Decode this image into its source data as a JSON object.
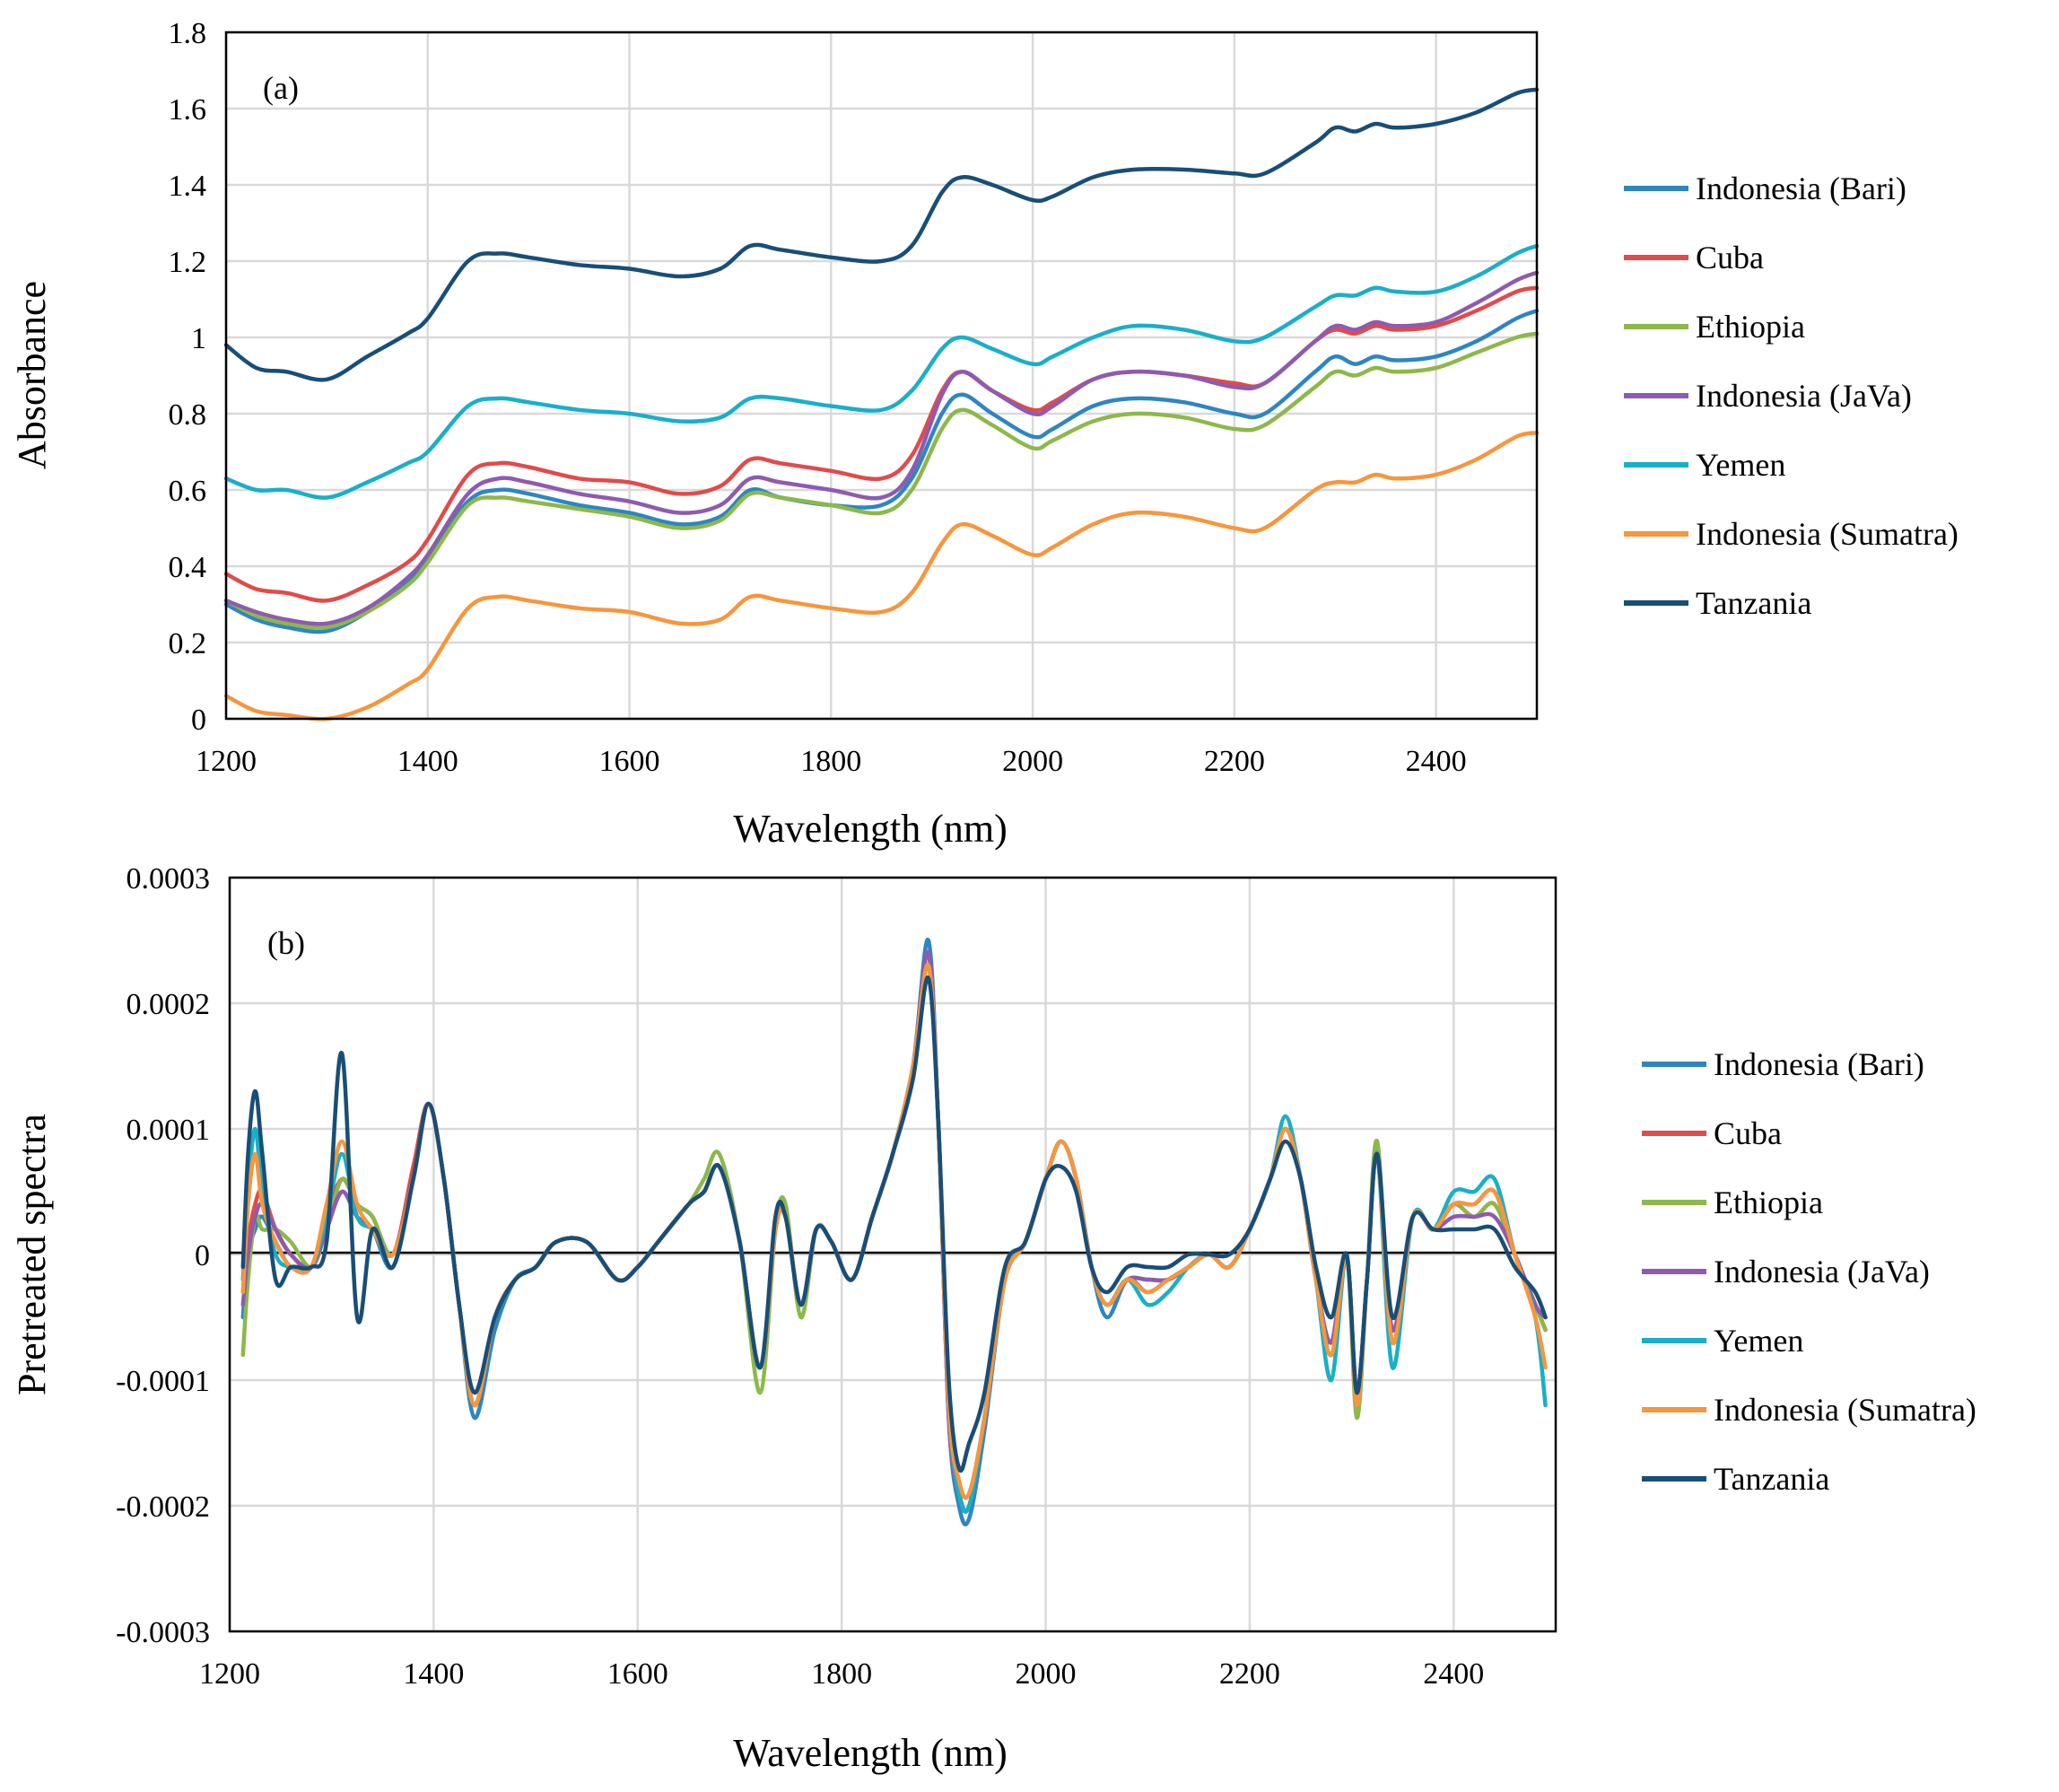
{
  "figure": {
    "colors": {
      "Indonesia (Bari)": "#2E86C1",
      "Cuba": "#E04B4B",
      "Ethiopia": "#8DB84A",
      "Indonesia (JaVa)": "#8E5BAF",
      "Yemen": "#19AFC8",
      "Indonesia (Sumatra)": "#F7963C",
      "Tanzania": "#184E77"
    }
  },
  "chart_data": [
    {
      "type": "line",
      "panel_label": "(a)",
      "xlabel": "Wavelength (nm)",
      "ylabel": "Absorbance",
      "xlim": [
        1200,
        2500
      ],
      "ylim": [
        0,
        1.8
      ],
      "xticks": [
        "1200",
        "1400",
        "1600",
        "1800",
        "2000",
        "2200",
        "2400"
      ],
      "yticks": [
        "0",
        "0.2",
        "0.4",
        "0.6",
        "0.8",
        "1",
        "1.2",
        "1.4",
        "1.6",
        "1.8"
      ],
      "grid": true,
      "legend": "right",
      "x": [
        1200,
        1230,
        1260,
        1300,
        1340,
        1380,
        1400,
        1440,
        1470,
        1500,
        1550,
        1600,
        1650,
        1690,
        1720,
        1750,
        1800,
        1850,
        1880,
        1910,
        1930,
        1960,
        2000,
        2020,
        2060,
        2100,
        2150,
        2200,
        2230,
        2280,
        2300,
        2320,
        2340,
        2360,
        2400,
        2440,
        2480,
        2500
      ],
      "series": [
        {
          "name": "Indonesia (Bari)",
          "values": [
            0.3,
            0.26,
            0.24,
            0.23,
            0.28,
            0.36,
            0.42,
            0.57,
            0.6,
            0.59,
            0.56,
            0.54,
            0.51,
            0.53,
            0.6,
            0.58,
            0.56,
            0.56,
            0.63,
            0.8,
            0.85,
            0.8,
            0.74,
            0.76,
            0.82,
            0.84,
            0.83,
            0.8,
            0.8,
            0.91,
            0.95,
            0.93,
            0.95,
            0.94,
            0.95,
            0.99,
            1.05,
            1.07
          ]
        },
        {
          "name": "Cuba",
          "values": [
            0.38,
            0.34,
            0.33,
            0.31,
            0.35,
            0.41,
            0.47,
            0.64,
            0.67,
            0.66,
            0.63,
            0.62,
            0.59,
            0.61,
            0.68,
            0.67,
            0.65,
            0.63,
            0.69,
            0.86,
            0.91,
            0.86,
            0.81,
            0.83,
            0.89,
            0.91,
            0.9,
            0.88,
            0.88,
            0.99,
            1.02,
            1.01,
            1.03,
            1.02,
            1.03,
            1.07,
            1.12,
            1.13
          ]
        },
        {
          "name": "Ethiopia",
          "values": [
            0.31,
            0.27,
            0.25,
            0.24,
            0.28,
            0.35,
            0.41,
            0.56,
            0.58,
            0.57,
            0.55,
            0.53,
            0.5,
            0.52,
            0.59,
            0.58,
            0.56,
            0.54,
            0.6,
            0.76,
            0.81,
            0.77,
            0.71,
            0.73,
            0.78,
            0.8,
            0.79,
            0.76,
            0.77,
            0.87,
            0.91,
            0.9,
            0.92,
            0.91,
            0.92,
            0.96,
            1.0,
            1.01
          ]
        },
        {
          "name": "Indonesia (JaVa)",
          "values": [
            0.31,
            0.28,
            0.26,
            0.25,
            0.29,
            0.37,
            0.43,
            0.59,
            0.63,
            0.62,
            0.59,
            0.57,
            0.54,
            0.56,
            0.63,
            0.62,
            0.6,
            0.58,
            0.65,
            0.85,
            0.91,
            0.86,
            0.8,
            0.82,
            0.89,
            0.91,
            0.9,
            0.87,
            0.88,
            0.99,
            1.03,
            1.02,
            1.04,
            1.03,
            1.04,
            1.09,
            1.15,
            1.17
          ]
        },
        {
          "name": "Yemen",
          "values": [
            0.63,
            0.6,
            0.6,
            0.58,
            0.62,
            0.67,
            0.7,
            0.82,
            0.84,
            0.83,
            0.81,
            0.8,
            0.78,
            0.79,
            0.84,
            0.84,
            0.82,
            0.81,
            0.86,
            0.97,
            1.0,
            0.97,
            0.93,
            0.95,
            1.0,
            1.03,
            1.02,
            0.99,
            1.0,
            1.08,
            1.11,
            1.11,
            1.13,
            1.12,
            1.12,
            1.16,
            1.22,
            1.24
          ]
        },
        {
          "name": "Indonesia (Sumatra)",
          "values": [
            0.06,
            0.02,
            0.01,
            0.0,
            0.03,
            0.09,
            0.13,
            0.29,
            0.32,
            0.31,
            0.29,
            0.28,
            0.25,
            0.26,
            0.32,
            0.31,
            0.29,
            0.28,
            0.33,
            0.46,
            0.51,
            0.48,
            0.43,
            0.45,
            0.51,
            0.54,
            0.53,
            0.5,
            0.5,
            0.6,
            0.62,
            0.62,
            0.64,
            0.63,
            0.64,
            0.68,
            0.74,
            0.75
          ]
        },
        {
          "name": "Tanzania",
          "values": [
            0.98,
            0.92,
            0.91,
            0.89,
            0.95,
            1.01,
            1.05,
            1.2,
            1.22,
            1.21,
            1.19,
            1.18,
            1.16,
            1.18,
            1.24,
            1.23,
            1.21,
            1.2,
            1.24,
            1.38,
            1.42,
            1.4,
            1.36,
            1.37,
            1.42,
            1.44,
            1.44,
            1.43,
            1.43,
            1.51,
            1.55,
            1.54,
            1.56,
            1.55,
            1.56,
            1.59,
            1.64,
            1.65
          ]
        }
      ]
    },
    {
      "type": "line",
      "panel_label": "(b)",
      "xlabel": "Wavelength (nm)",
      "ylabel": "Pretreated spectra",
      "xlim": [
        1200,
        2500
      ],
      "ylim": [
        -0.0003,
        0.0003
      ],
      "xticks": [
        "1200",
        "1400",
        "1600",
        "1800",
        "2000",
        "2200",
        "2400"
      ],
      "yticks": [
        "0.0003",
        "0.0002",
        "0.0001",
        "0",
        "-0.0001",
        "-0.0002",
        "-0.0003"
      ],
      "grid": true,
      "legend": "right",
      "x": [
        1213,
        1218,
        1225,
        1232,
        1245,
        1260,
        1280,
        1295,
        1310,
        1325,
        1340,
        1360,
        1380,
        1395,
        1410,
        1425,
        1440,
        1460,
        1480,
        1500,
        1520,
        1550,
        1580,
        1600,
        1620,
        1650,
        1665,
        1680,
        1700,
        1720,
        1735,
        1745,
        1760,
        1775,
        1790,
        1810,
        1830,
        1850,
        1870,
        1885,
        1895,
        1905,
        1915,
        1925,
        1940,
        1960,
        1980,
        2000,
        2015,
        2030,
        2045,
        2060,
        2080,
        2100,
        2120,
        2140,
        2160,
        2180,
        2200,
        2220,
        2235,
        2250,
        2265,
        2280,
        2295,
        2305,
        2315,
        2325,
        2340,
        2360,
        2380,
        2400,
        2420,
        2440,
        2460,
        2480,
        2490
      ],
      "series": [
        {
          "name": "Indonesia (Bari)",
          "values": [
            -5e-05,
            0.0,
            2e-05,
            3e-05,
            1e-05,
            -1e-05,
            -1e-05,
            2e-05,
            5e-05,
            3e-05,
            2e-05,
            -1e-05,
            6e-05,
            0.00012,
            6e-05,
            -4e-05,
            -0.00013,
            -6e-05,
            -2e-05,
            -1e-05,
            1e-05,
            1e-05,
            -2e-05,
            -1e-05,
            1e-05,
            4e-05,
            5e-05,
            7e-05,
            1e-05,
            -9e-05,
            2e-05,
            3e-05,
            -4e-05,
            2e-05,
            1e-05,
            -2e-05,
            3e-05,
            8e-05,
            0.00015,
            0.00025,
            0.0001,
            -0.00013,
            -0.0002,
            -0.00021,
            -0.00014,
            -2e-05,
            1e-05,
            6e-05,
            9e-05,
            6e-05,
            -1e-05,
            -5e-05,
            -2e-05,
            -3e-05,
            -2e-05,
            -1e-05,
            0.0,
            -1e-05,
            2e-05,
            6e-05,
            0.0001,
            6e-05,
            -2e-05,
            -8e-05,
            0.0,
            -0.00012,
            -2e-05,
            8e-05,
            -7e-05,
            3e-05,
            2e-05,
            4e-05,
            4e-05,
            5e-05,
            0.0,
            -4e-05,
            -6e-05
          ]
        },
        {
          "name": "Cuba",
          "values": [
            -3e-05,
            1e-05,
            4e-05,
            5e-05,
            2e-05,
            0.0,
            -1e-05,
            3e-05,
            6e-05,
            4e-05,
            3e-05,
            0.0,
            7e-05,
            0.00012,
            6e-05,
            -4e-05,
            -0.00012,
            -5e-05,
            -2e-05,
            -1e-05,
            1e-05,
            1e-05,
            -2e-05,
            -1e-05,
            1e-05,
            4e-05,
            5e-05,
            7e-05,
            1e-05,
            -9e-05,
            2e-05,
            3e-05,
            -4e-05,
            2e-05,
            1e-05,
            -2e-05,
            3e-05,
            8e-05,
            0.00015,
            0.00024,
            0.0001,
            -0.00013,
            -0.00019,
            -0.0002,
            -0.00013,
            -2e-05,
            1e-05,
            6e-05,
            9e-05,
            6e-05,
            -1e-05,
            -4e-05,
            -2e-05,
            -2e-05,
            -2e-05,
            -1e-05,
            0.0,
            -1e-05,
            2e-05,
            6e-05,
            0.0001,
            6e-05,
            -2e-05,
            -7e-05,
            0.0,
            -0.00011,
            -2e-05,
            8e-05,
            -6e-05,
            3e-05,
            2e-05,
            4e-05,
            3e-05,
            4e-05,
            0.0,
            -4e-05,
            -6e-05
          ]
        },
        {
          "name": "Ethiopia",
          "values": [
            -8e-05,
            -2e-05,
            3e-05,
            2e-05,
            2e-05,
            1e-05,
            -1e-05,
            2e-05,
            6e-05,
            4e-05,
            3e-05,
            0.0,
            6e-05,
            0.00012,
            6e-05,
            -4e-05,
            -0.00012,
            -5e-05,
            -2e-05,
            -1e-05,
            1e-05,
            1e-05,
            -2e-05,
            -1e-05,
            1e-05,
            4e-05,
            6e-05,
            8e-05,
            1e-05,
            -0.00011,
            2e-05,
            4e-05,
            -5e-05,
            2e-05,
            1e-05,
            -2e-05,
            3e-05,
            8e-05,
            0.00015,
            0.00023,
            0.0001,
            -0.00012,
            -0.00018,
            -0.00019,
            -0.00013,
            -2e-05,
            1e-05,
            6e-05,
            9e-05,
            6e-05,
            -1e-05,
            -4e-05,
            -2e-05,
            -2e-05,
            -2e-05,
            -1e-05,
            0.0,
            -1e-05,
            2e-05,
            6e-05,
            0.0001,
            6e-05,
            -2e-05,
            -7e-05,
            0.0,
            -0.00013,
            -2e-05,
            9e-05,
            -7e-05,
            3e-05,
            2e-05,
            4e-05,
            3e-05,
            4e-05,
            0.0,
            -4e-05,
            -6e-05
          ]
        },
        {
          "name": "Indonesia (JaVa)",
          "values": [
            -4e-05,
            0.0,
            3e-05,
            4e-05,
            2e-05,
            0.0,
            -1e-05,
            2e-05,
            5e-05,
            3e-05,
            2e-05,
            0.0,
            6e-05,
            0.00012,
            6e-05,
            -4e-05,
            -0.00012,
            -5e-05,
            -2e-05,
            -1e-05,
            1e-05,
            1e-05,
            -2e-05,
            -1e-05,
            1e-05,
            4e-05,
            5e-05,
            7e-05,
            1e-05,
            -9e-05,
            2e-05,
            3e-05,
            -4e-05,
            2e-05,
            1e-05,
            -2e-05,
            3e-05,
            8e-05,
            0.00015,
            0.00024,
            0.0001,
            -0.00013,
            -0.00019,
            -0.0002,
            -0.00013,
            -2e-05,
            1e-05,
            6e-05,
            9e-05,
            6e-05,
            -1e-05,
            -4e-05,
            -2e-05,
            -2e-05,
            -2e-05,
            -1e-05,
            0.0,
            -1e-05,
            2e-05,
            6e-05,
            0.0001,
            6e-05,
            -2e-05,
            -7e-05,
            0.0,
            -0.00011,
            -2e-05,
            8e-05,
            -6e-05,
            3e-05,
            2e-05,
            3e-05,
            3e-05,
            3e-05,
            0.0,
            -4e-05,
            -5e-05
          ]
        },
        {
          "name": "Yemen",
          "values": [
            -2e-05,
            5e-05,
            0.0001,
            5e-05,
            0.0,
            -1e-05,
            -1e-05,
            3e-05,
            8e-05,
            3e-05,
            2e-05,
            0.0,
            6e-05,
            0.00012,
            6e-05,
            -4e-05,
            -0.00012,
            -5e-05,
            -2e-05,
            -1e-05,
            1e-05,
            1e-05,
            -2e-05,
            -1e-05,
            1e-05,
            4e-05,
            5e-05,
            7e-05,
            1e-05,
            -9e-05,
            2e-05,
            3e-05,
            -4e-05,
            2e-05,
            1e-05,
            -2e-05,
            3e-05,
            8e-05,
            0.00015,
            0.00023,
            0.0001,
            -0.00012,
            -0.00019,
            -0.0002,
            -0.00013,
            -2e-05,
            1e-05,
            6e-05,
            9e-05,
            6e-05,
            -1e-05,
            -4e-05,
            -2e-05,
            -4e-05,
            -3e-05,
            -1e-05,
            0.0,
            -1e-05,
            2e-05,
            6e-05,
            0.00011,
            6e-05,
            -2e-05,
            -0.0001,
            0.0,
            -0.00012,
            -2e-05,
            8e-05,
            -9e-05,
            3e-05,
            2e-05,
            5e-05,
            5e-05,
            6e-05,
            0.0,
            -5e-05,
            -0.00012
          ]
        },
        {
          "name": "Indonesia (Sumatra)",
          "values": [
            -3e-05,
            4e-05,
            8e-05,
            4e-05,
            1e-05,
            -1e-05,
            -1e-05,
            4e-05,
            9e-05,
            4e-05,
            2e-05,
            0.0,
            6e-05,
            0.00012,
            6e-05,
            -4e-05,
            -0.00012,
            -5e-05,
            -2e-05,
            -1e-05,
            1e-05,
            1e-05,
            -2e-05,
            -1e-05,
            1e-05,
            4e-05,
            5e-05,
            7e-05,
            1e-05,
            -9e-05,
            2e-05,
            3e-05,
            -4e-05,
            2e-05,
            1e-05,
            -2e-05,
            3e-05,
            8e-05,
            0.00015,
            0.00023,
            0.0001,
            -0.00012,
            -0.00018,
            -0.00019,
            -0.00013,
            -2e-05,
            1e-05,
            6e-05,
            9e-05,
            6e-05,
            -1e-05,
            -4e-05,
            -2e-05,
            -3e-05,
            -2e-05,
            -1e-05,
            0.0,
            -1e-05,
            2e-05,
            6e-05,
            0.0001,
            6e-05,
            -2e-05,
            -8e-05,
            0.0,
            -0.00012,
            -2e-05,
            8e-05,
            -7e-05,
            3e-05,
            2e-05,
            4e-05,
            4e-05,
            5e-05,
            0.0,
            -5e-05,
            -9e-05
          ]
        },
        {
          "name": "Tanzania",
          "values": [
            -1e-05,
            8e-05,
            0.00013,
            8e-05,
            -2e-05,
            -1e-05,
            -1e-05,
            1e-05,
            0.00016,
            -5e-05,
            2e-05,
            -1e-05,
            6e-05,
            0.00012,
            6e-05,
            -4e-05,
            -0.00011,
            -5e-05,
            -2e-05,
            -1e-05,
            1e-05,
            1e-05,
            -2e-05,
            -1e-05,
            1e-05,
            4e-05,
            5e-05,
            7e-05,
            1e-05,
            -9e-05,
            3e-05,
            3e-05,
            -4e-05,
            2e-05,
            1e-05,
            -2e-05,
            3e-05,
            8e-05,
            0.00014,
            0.00022,
            0.0001,
            -0.0001,
            -0.00017,
            -0.00015,
            -0.00011,
            -1e-05,
            1e-05,
            6e-05,
            7e-05,
            5e-05,
            -1e-05,
            -3e-05,
            -1e-05,
            -1e-05,
            -1e-05,
            0.0,
            0.0,
            0.0,
            2e-05,
            6e-05,
            9e-05,
            6e-05,
            -1e-05,
            -5e-05,
            0.0,
            -0.00011,
            -2e-05,
            8e-05,
            -5e-05,
            3e-05,
            2e-05,
            2e-05,
            2e-05,
            2e-05,
            -1e-05,
            -3e-05,
            -5e-05
          ]
        }
      ]
    }
  ]
}
